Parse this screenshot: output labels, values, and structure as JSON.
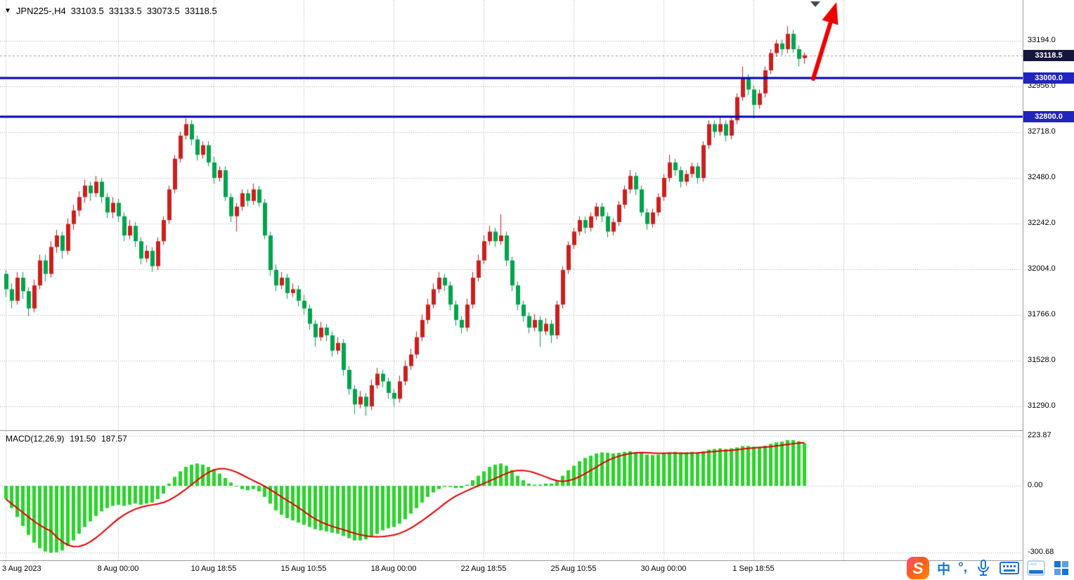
{
  "colors": {
    "bull": "#cc1f1f",
    "bear": "#00a44c",
    "macd_hist": "#2bd42b",
    "macd_signal": "#e00000",
    "hline": "#0000b4",
    "grid": "#adadad",
    "arrow": "#ee0000",
    "badge_current_bg": "#15153d",
    "badge_level_bg": "#2323c0"
  },
  "header": {
    "collapse_icon": "▼",
    "symbol": "JPN225-,H4",
    "open": "33103.5",
    "high": "33133.5",
    "low": "33073.5",
    "close": "33118.5"
  },
  "macd_panel": {
    "label": "MACD(12,26,9)",
    "value_main": "191.50",
    "value_signal": "187.57"
  },
  "axes": {
    "price_ticks": [
      "33194.0",
      "32956.0",
      "32718.0",
      "32480.0",
      "32242.0",
      "32004.0",
      "31766.0",
      "31528.0",
      "31290.0"
    ],
    "price_tick_values": [
      33194,
      32956,
      32718,
      32480,
      32242,
      32004,
      31766,
      31528,
      31290
    ],
    "current_price_label": "33118.5",
    "hline_labels": [
      "33000.0",
      "32800.0"
    ],
    "macd_ticks": [
      "223.87",
      "0.00",
      "-300.68"
    ],
    "macd_tick_values": [
      223.87,
      0,
      -300.68
    ],
    "time_labels": [
      {
        "text": "3 Aug 2023",
        "index": 0
      },
      {
        "text": "8 Aug 00:00",
        "index": 20
      },
      {
        "text": "10 Aug 18:55",
        "index": 37
      },
      {
        "text": "15 Aug 10:55",
        "index": 53
      },
      {
        "text": "18 Aug 00:00",
        "index": 69
      },
      {
        "text": "22 Aug 18:55",
        "index": 85
      },
      {
        "text": "25 Aug 10:55",
        "index": 101
      },
      {
        "text": "30 Aug 00:00",
        "index": 117
      },
      {
        "text": "1 Sep 18:55",
        "index": 133
      }
    ],
    "grid_extra_indices": [
      149
    ]
  },
  "annotations": {
    "arrow": "red-up-arrow pointing to breakout above 33000",
    "top_marker": "small gray down-triangle chart-shift marker"
  },
  "taskbar": {
    "icons": [
      {
        "name": "skrill-icon",
        "glyph": "S"
      },
      {
        "name": "ime-language-icon",
        "glyph": "中"
      },
      {
        "name": "ime-punctuation-icon",
        "glyph": "°,"
      },
      {
        "name": "microphone-icon",
        "glyph": ""
      },
      {
        "name": "touch-keyboard-icon",
        "glyph": ""
      },
      {
        "name": "ime-window-icon",
        "glyph": ""
      },
      {
        "name": "apps-grid-icon",
        "glyph": ""
      }
    ]
  },
  "chart_data": [
    {
      "type": "candlestick",
      "symbol": "JPN225-",
      "timeframe": "H4",
      "title": "JPN225-,H4 33103.5 33133.5 33073.5 33118.5",
      "last": 33118.5,
      "hlines": [
        33000,
        32800
      ],
      "ohlc_display": {
        "open": 33103.5,
        "high": 33133.5,
        "low": 33073.5,
        "close": 33118.5
      },
      "ylim": [
        31200,
        33420
      ],
      "y_ticks": [
        33194,
        32956,
        32718,
        32480,
        32242,
        32004,
        31766,
        31528,
        31290
      ],
      "x_label_dates": [
        "3 Aug 2023",
        "8 Aug 00:00",
        "10 Aug 18:55",
        "15 Aug 10:55",
        "18 Aug 00:00",
        "22 Aug 18:55",
        "25 Aug 10:55",
        "30 Aug 00:00",
        "1 Sep 18:55"
      ],
      "up_color_note": "bullish candles red, bearish candles green",
      "candles": [
        [
          31980,
          32000,
          31860,
          31900
        ],
        [
          31900,
          31930,
          31800,
          31840
        ],
        [
          31840,
          31990,
          31820,
          31960
        ],
        [
          31960,
          31990,
          31850,
          31890
        ],
        [
          31890,
          31910,
          31760,
          31800
        ],
        [
          31800,
          31950,
          31780,
          31920
        ],
        [
          31920,
          32080,
          31900,
          32050
        ],
        [
          32050,
          32080,
          31940,
          31980
        ],
        [
          31980,
          32150,
          31960,
          32120
        ],
        [
          32120,
          32210,
          32090,
          32180
        ],
        [
          32180,
          32200,
          32060,
          32100
        ],
        [
          32100,
          32270,
          32080,
          32240
        ],
        [
          32240,
          32340,
          32210,
          32310
        ],
        [
          32310,
          32410,
          32280,
          32380
        ],
        [
          32380,
          32470,
          32350,
          32440
        ],
        [
          32440,
          32460,
          32360,
          32400
        ],
        [
          32400,
          32490,
          32380,
          32460
        ],
        [
          32460,
          32480,
          32350,
          32380
        ],
        [
          32380,
          32400,
          32270,
          32300
        ],
        [
          32300,
          32380,
          32270,
          32350
        ],
        [
          32350,
          32370,
          32250,
          32280
        ],
        [
          32280,
          32300,
          32150,
          32180
        ],
        [
          32180,
          32260,
          32160,
          32230
        ],
        [
          32230,
          32250,
          32120,
          32150
        ],
        [
          32150,
          32170,
          32030,
          32060
        ],
        [
          32060,
          32130,
          32040,
          32100
        ],
        [
          32100,
          32120,
          31990,
          32020
        ],
        [
          32020,
          32170,
          32000,
          32150
        ],
        [
          32150,
          32280,
          32130,
          32260
        ],
        [
          32260,
          32440,
          32240,
          32420
        ],
        [
          32420,
          32600,
          32400,
          32580
        ],
        [
          32580,
          32720,
          32560,
          32700
        ],
        [
          32700,
          32790,
          32680,
          32760
        ],
        [
          32760,
          32780,
          32650,
          32680
        ],
        [
          32680,
          32700,
          32570,
          32600
        ],
        [
          32600,
          32670,
          32580,
          32650
        ],
        [
          32650,
          32670,
          32540,
          32560
        ],
        [
          32560,
          32590,
          32450,
          32480
        ],
        [
          32480,
          32540,
          32460,
          32520
        ],
        [
          32520,
          32540,
          32360,
          32380
        ],
        [
          32380,
          32400,
          32250,
          32280
        ],
        [
          32280,
          32350,
          32200,
          32330
        ],
        [
          32330,
          32420,
          32310,
          32400
        ],
        [
          32400,
          32420,
          32330,
          32360
        ],
        [
          32360,
          32450,
          32340,
          32420
        ],
        [
          32420,
          32440,
          32330,
          32350
        ],
        [
          32350,
          32370,
          32160,
          32180
        ],
        [
          32180,
          32200,
          31970,
          32000
        ],
        [
          32000,
          32030,
          31890,
          31920
        ],
        [
          31920,
          31990,
          31900,
          31960
        ],
        [
          31960,
          31980,
          31850,
          31880
        ],
        [
          31880,
          31930,
          31860,
          31900
        ],
        [
          31900,
          31920,
          31810,
          31840
        ],
        [
          31840,
          31870,
          31770,
          31800
        ],
        [
          31800,
          31820,
          31690,
          31720
        ],
        [
          31720,
          31740,
          31600,
          31650
        ],
        [
          31650,
          31730,
          31630,
          31700
        ],
        [
          31700,
          31720,
          31630,
          31660
        ],
        [
          31660,
          31680,
          31550,
          31580
        ],
        [
          31580,
          31650,
          31560,
          31620
        ],
        [
          31620,
          31640,
          31450,
          31480
        ],
        [
          31480,
          31500,
          31350,
          31380
        ],
        [
          31380,
          31400,
          31250,
          31300
        ],
        [
          31300,
          31370,
          31280,
          31340
        ],
        [
          31340,
          31360,
          31240,
          31290
        ],
        [
          31290,
          31430,
          31270,
          31400
        ],
        [
          31400,
          31490,
          31380,
          31460
        ],
        [
          31460,
          31480,
          31390,
          31420
        ],
        [
          31420,
          31440,
          31330,
          31360
        ],
        [
          31360,
          31380,
          31290,
          31330
        ],
        [
          31330,
          31450,
          31310,
          31420
        ],
        [
          31420,
          31530,
          31400,
          31500
        ],
        [
          31500,
          31590,
          31480,
          31560
        ],
        [
          31560,
          31680,
          31540,
          31650
        ],
        [
          31650,
          31770,
          31630,
          31740
        ],
        [
          31740,
          31850,
          31720,
          31820
        ],
        [
          31820,
          31930,
          31800,
          31900
        ],
        [
          31900,
          31990,
          31880,
          31960
        ],
        [
          31960,
          31980,
          31890,
          31920
        ],
        [
          31920,
          31940,
          31790,
          31820
        ],
        [
          31820,
          31840,
          31710,
          31740
        ],
        [
          31740,
          31760,
          31670,
          31700
        ],
        [
          31700,
          31850,
          31680,
          31820
        ],
        [
          31820,
          31990,
          31800,
          31960
        ],
        [
          31960,
          32080,
          31940,
          32050
        ],
        [
          32050,
          32180,
          32030,
          32150
        ],
        [
          32150,
          32230,
          32130,
          32200
        ],
        [
          32200,
          32220,
          32120,
          32150
        ],
        [
          32150,
          32290,
          32130,
          32180
        ],
        [
          32180,
          32200,
          32020,
          32050
        ],
        [
          32050,
          32070,
          31890,
          31920
        ],
        [
          31920,
          31940,
          31790,
          31820
        ],
        [
          31820,
          31840,
          31730,
          31760
        ],
        [
          31760,
          31780,
          31670,
          31700
        ],
        [
          31700,
          31770,
          31680,
          31740
        ],
        [
          31740,
          31760,
          31600,
          31680
        ],
        [
          31680,
          31750,
          31660,
          31720
        ],
        [
          31720,
          31740,
          31620,
          31660
        ],
        [
          31660,
          31840,
          31640,
          31820
        ],
        [
          31820,
          32020,
          31800,
          32000
        ],
        [
          32000,
          32150,
          31980,
          32130
        ],
        [
          32130,
          32220,
          32110,
          32200
        ],
        [
          32200,
          32280,
          32180,
          32260
        ],
        [
          32260,
          32280,
          32190,
          32220
        ],
        [
          32220,
          32300,
          32200,
          32280
        ],
        [
          32280,
          32350,
          32260,
          32330
        ],
        [
          32330,
          32350,
          32250,
          32280
        ],
        [
          32280,
          32300,
          32170,
          32200
        ],
        [
          32200,
          32270,
          32180,
          32250
        ],
        [
          32250,
          32360,
          32230,
          32340
        ],
        [
          32340,
          32440,
          32320,
          32420
        ],
        [
          32420,
          32520,
          32400,
          32490
        ],
        [
          32490,
          32510,
          32390,
          32420
        ],
        [
          32420,
          32440,
          32280,
          32300
        ],
        [
          32300,
          32320,
          32210,
          32240
        ],
        [
          32240,
          32320,
          32220,
          32300
        ],
        [
          32300,
          32400,
          32280,
          32380
        ],
        [
          32380,
          32500,
          32360,
          32480
        ],
        [
          32480,
          32600,
          32460,
          32560
        ],
        [
          32560,
          32580,
          32490,
          32520
        ],
        [
          32520,
          32540,
          32430,
          32460
        ],
        [
          32460,
          32520,
          32440,
          32500
        ],
        [
          32500,
          32560,
          32480,
          32540
        ],
        [
          32540,
          32560,
          32450,
          32480
        ],
        [
          32480,
          32670,
          32460,
          32650
        ],
        [
          32650,
          32780,
          32630,
          32760
        ],
        [
          32760,
          32780,
          32690,
          32720
        ],
        [
          32720,
          32800,
          32700,
          32760
        ],
        [
          32760,
          32780,
          32670,
          32700
        ],
        [
          32700,
          32800,
          32680,
          32780
        ],
        [
          32780,
          32920,
          32760,
          32900
        ],
        [
          32900,
          33060,
          32880,
          33000
        ],
        [
          33000,
          33020,
          32910,
          32940
        ],
        [
          32940,
          32960,
          32790,
          32860
        ],
        [
          32860,
          32940,
          32840,
          32920
        ],
        [
          32920,
          33060,
          32900,
          33040
        ],
        [
          33040,
          33150,
          33020,
          33130
        ],
        [
          33130,
          33200,
          33110,
          33180
        ],
        [
          33180,
          33200,
          33120,
          33150
        ],
        [
          33150,
          33270,
          33130,
          33230
        ],
        [
          33230,
          33250,
          33130,
          33150
        ],
        [
          33150,
          33170,
          33060,
          33100
        ],
        [
          33103.5,
          33133.5,
          33073.5,
          33118.5
        ]
      ]
    },
    {
      "type": "bar",
      "name": "MACD(12,26,9)",
      "current_macd": 191.5,
      "current_signal": 187.57,
      "ylim": [
        -300.68,
        223.87
      ],
      "y_ticks": [
        223.87,
        0.0,
        -300.68
      ],
      "signal_note": "red line = SMA(9) of histogram values",
      "values": [
        -60,
        -100,
        -140,
        -180,
        -220,
        -255,
        -280,
        -295,
        -300,
        -298,
        -290,
        -270,
        -245,
        -215,
        -185,
        -160,
        -135,
        -115,
        -100,
        -90,
        -85,
        -90,
        -85,
        -80,
        -85,
        -80,
        -75,
        -60,
        -35,
        10,
        40,
        65,
        85,
        95,
        100,
        95,
        85,
        70,
        55,
        35,
        15,
        0,
        -15,
        -20,
        -15,
        -25,
        -50,
        -80,
        -110,
        -130,
        -145,
        -155,
        -165,
        -175,
        -185,
        -195,
        -200,
        -205,
        -210,
        -215,
        -225,
        -235,
        -245,
        -245,
        -240,
        -230,
        -215,
        -200,
        -190,
        -185,
        -170,
        -150,
        -125,
        -100,
        -75,
        -50,
        -30,
        -15,
        -5,
        -5,
        -10,
        -10,
        5,
        25,
        45,
        65,
        85,
        95,
        100,
        90,
        70,
        45,
        25,
        10,
        5,
        5,
        10,
        10,
        25,
        45,
        70,
        90,
        110,
        125,
        135,
        145,
        150,
        148,
        145,
        148,
        152,
        155,
        152,
        145,
        140,
        138,
        140,
        145,
        150,
        152,
        150,
        150,
        152,
        150,
        155,
        162,
        165,
        168,
        165,
        168,
        172,
        178,
        178,
        175,
        175,
        180,
        188,
        195,
        198,
        205,
        205,
        200,
        191.5
      ]
    }
  ]
}
